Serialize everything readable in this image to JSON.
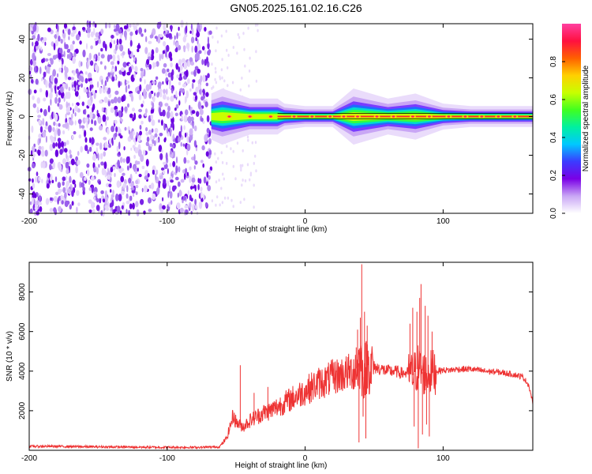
{
  "figure": {
    "title": "GN05.2025.161.02.16.C26"
  },
  "chart_data": [
    {
      "type": "heatmap",
      "xlabel": "Height of straight line (km)",
      "ylabel": "Frequency (Hz)",
      "xlim": [
        -200,
        165
      ],
      "ylim": [
        -50,
        48
      ],
      "xticks": [
        -200,
        -100,
        0,
        100
      ],
      "yticks": [
        -40,
        -20,
        0,
        20,
        40
      ],
      "grid": false,
      "noise_region_x": [
        -200,
        -68
      ],
      "signal_band": [
        {
          "x": -68,
          "half_width": 4
        },
        {
          "x": -60,
          "half_width": 5
        },
        {
          "x": -40,
          "half_width": 3
        },
        {
          "x": -20,
          "half_width": 3
        },
        {
          "x": -15,
          "half_width": 2
        },
        {
          "x": 0,
          "half_width": 1.5
        },
        {
          "x": 20,
          "half_width": 1.5
        },
        {
          "x": 35,
          "half_width": 5
        },
        {
          "x": 60,
          "half_width": 3
        },
        {
          "x": 80,
          "half_width": 4
        },
        {
          "x": 100,
          "half_width": 2
        },
        {
          "x": 120,
          "half_width": 1.5
        },
        {
          "x": 165,
          "half_width": 1.5
        }
      ],
      "colorbar": {
        "label": "Normalized spectral amplitude",
        "range": [
          0,
          1
        ],
        "ticks": [
          0.0,
          0.2,
          0.4,
          0.6,
          0.8
        ],
        "colors": [
          "#ffffff",
          "#c9a6f5",
          "#7a00e6",
          "#3b3bff",
          "#00c8ff",
          "#00f0a0",
          "#40ff20",
          "#c8ff00",
          "#ffd000",
          "#ff6000",
          "#ff1040",
          "#ff3fa0"
        ]
      }
    },
    {
      "type": "line",
      "xlabel": "Height of straight line (km)",
      "ylabel": "SNR (10 * v/v)",
      "xlim": [
        -200,
        165
      ],
      "ylim": [
        0,
        9500
      ],
      "xticks": [
        -200,
        -100,
        0,
        100
      ],
      "yticks": [
        2000,
        4000,
        6000,
        8000
      ],
      "grid": false,
      "color": "#ee3333",
      "series": [
        {
          "x": [
            -200,
            -180,
            -160,
            -140,
            -120,
            -100,
            -80,
            -70,
            -62,
            -57,
            -54,
            -52,
            -50,
            -45,
            -40,
            -35,
            -30,
            -25,
            -20,
            -15,
            -10,
            -5,
            0,
            5,
            10,
            15,
            20,
            25,
            30,
            35,
            38,
            40,
            42,
            44,
            46,
            50,
            55,
            60,
            65,
            70,
            75,
            78,
            80,
            82,
            84,
            86,
            88,
            90,
            95,
            100,
            105,
            110,
            120,
            130,
            140,
            150,
            158,
            162,
            165
          ],
          "y": [
            200,
            200,
            180,
            170,
            160,
            150,
            150,
            160,
            180,
            600,
            1300,
            1800,
            1400,
            1200,
            1500,
            1700,
            1900,
            2000,
            2200,
            2400,
            2600,
            2800,
            3000,
            3200,
            3400,
            3500,
            3700,
            3800,
            3900,
            4000,
            4200,
            4600,
            3700,
            4200,
            4300,
            4200,
            4100,
            4000,
            4000,
            3900,
            3900,
            3800,
            4000,
            4200,
            4000,
            3900,
            3800,
            3900,
            4000,
            4050,
            4050,
            4100,
            4100,
            4000,
            3950,
            3850,
            3700,
            3300,
            2400
          ]
        }
      ],
      "spikes": [
        {
          "x": -47,
          "y": 4300
        },
        {
          "x": -37,
          "y": 2900
        },
        {
          "x": -27,
          "y": 3200
        },
        {
          "x": 37,
          "y": 5200
        },
        {
          "x": 38,
          "y": 6100
        },
        {
          "x": 40,
          "y": 6700
        },
        {
          "x": 41,
          "y": 9400
        },
        {
          "x": 43,
          "y": 7000
        },
        {
          "x": 45,
          "y": 6300
        },
        {
          "x": 76,
          "y": 6400
        },
        {
          "x": 78,
          "y": 7200
        },
        {
          "x": 81,
          "y": 7000
        },
        {
          "x": 83,
          "y": 7700
        },
        {
          "x": 84,
          "y": 8400
        },
        {
          "x": 87,
          "y": 7300
        },
        {
          "x": 89,
          "y": 6800
        },
        {
          "x": 92,
          "y": 6000
        }
      ],
      "dips": [
        {
          "x": 39,
          "y": 400
        },
        {
          "x": 42,
          "y": 1700
        },
        {
          "x": 44,
          "y": 600
        },
        {
          "x": 79,
          "y": 1200
        },
        {
          "x": 82,
          "y": 100
        },
        {
          "x": 85,
          "y": 800
        },
        {
          "x": 88,
          "y": 1300
        },
        {
          "x": 90,
          "y": 700
        }
      ]
    }
  ]
}
